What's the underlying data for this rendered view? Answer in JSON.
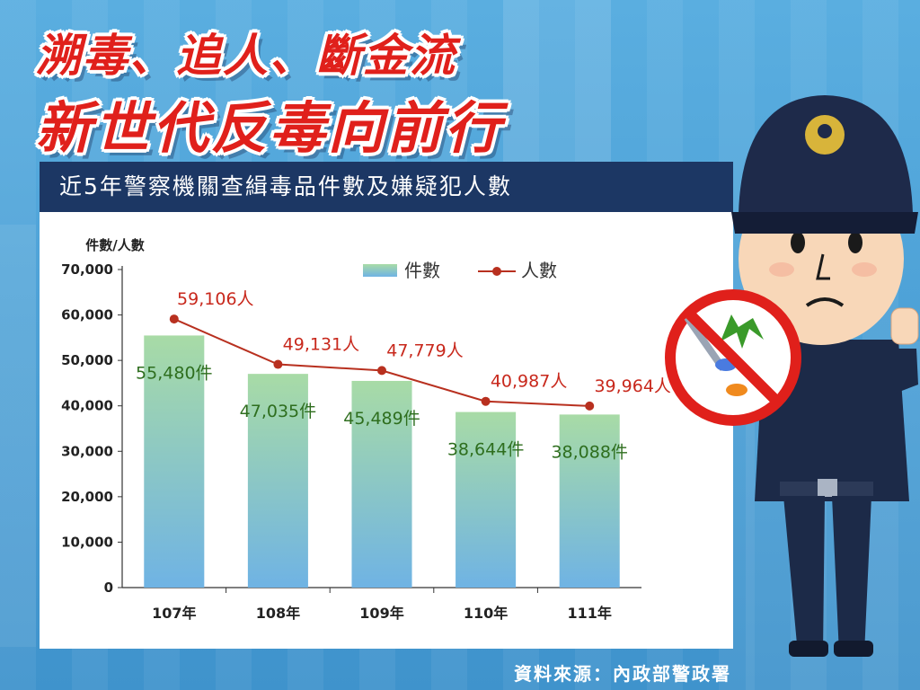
{
  "headline": {
    "line1": "溯毒、追人、斷金流",
    "line2": "新世代反毒向前行"
  },
  "source": "資料來源：內政部警政署",
  "colors": {
    "title_red": "#e0201b",
    "navy": "#1c3764",
    "background": "#4a9fd4",
    "bar_top": "#a8dba6",
    "bar_bottom": "#6fb3e4",
    "line_red": "#b8301f",
    "bar_label_green": "#2e6e1e"
  },
  "illustration": {
    "subject": "police-officer-icon",
    "props": [
      "no-drugs-sign-icon",
      "syringe-icon",
      "cannabis-leaf-icon",
      "pill-icon"
    ]
  },
  "chart_data": {
    "type": "bar",
    "title": "近5年警察機關查緝毒品件數及嫌疑犯人數",
    "ylabel": "件數/人數",
    "xlabel": "",
    "ylim": [
      0,
      70000
    ],
    "yticks": [
      "0",
      "10,000",
      "20,000",
      "30,000",
      "40,000",
      "50,000",
      "60,000",
      "70,000"
    ],
    "categories": [
      "107年",
      "108年",
      "109年",
      "110年",
      "111年"
    ],
    "grid": false,
    "legend_position": "top-right",
    "series": [
      {
        "name": "件數",
        "type": "bar",
        "values": [
          55480,
          47035,
          45489,
          38644,
          38088
        ],
        "labels": [
          "55,480件",
          "47,035件",
          "45,489件",
          "38,644件",
          "38,088件"
        ]
      },
      {
        "name": "人數",
        "type": "line",
        "values": [
          59106,
          49131,
          47779,
          40987,
          39964
        ],
        "labels": [
          "59,106人",
          "49,131人",
          "47,779人",
          "40,987人",
          "39,964人"
        ]
      }
    ]
  }
}
